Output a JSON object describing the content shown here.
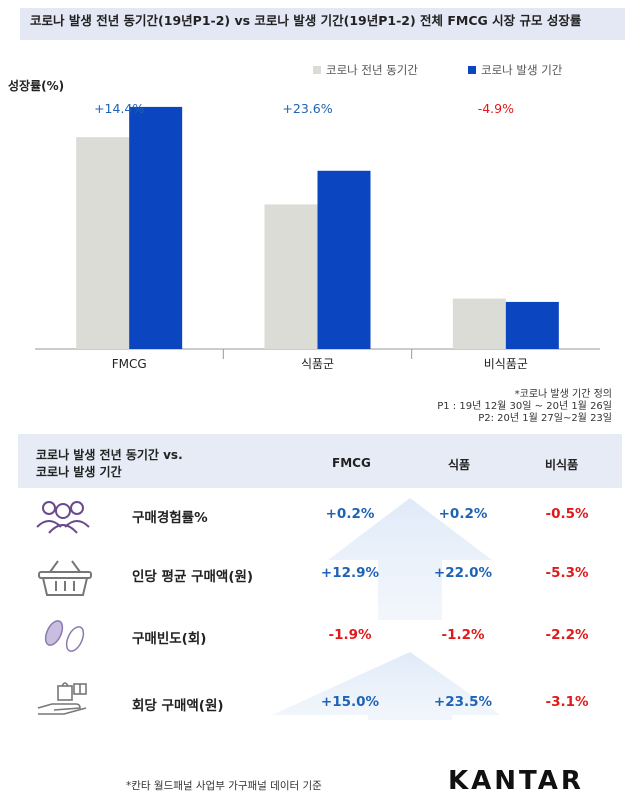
{
  "title": "코로나 발생 전년 동기간(19년P1-2) vs 코로나 발생 기간(19년P1-2) 전체 FMCG 시장 규모 성장률",
  "chart_data": {
    "type": "bar",
    "ylabel": "성장률(%)",
    "categories": [
      "FMCG",
      "식품군",
      "비식품군"
    ],
    "growth_labels": [
      "+14.4%",
      "+23.6%",
      "-4.9%"
    ],
    "series": [
      {
        "name": "코로나 전년 동기간",
        "color": "#dcdcd7",
        "values": [
          63,
          43,
          15
        ]
      },
      {
        "name": "코로나 발생 기간",
        "color": "#0b45c0",
        "values": [
          72,
          53,
          14
        ]
      }
    ],
    "ylim": [
      0,
      80
    ],
    "legend": "top-right",
    "grid": false
  },
  "note": {
    "line1": "*코로나 발생 기간 정의",
    "line2": "P1 : 19년 12월 30일 ~ 20년 1월 26일",
    "line3": "P2: 20년 1월 27일~2월 23일"
  },
  "table": {
    "header_line1": "코로나 발생 전년 동기간 vs.",
    "header_line2": "코로나 발생 기간",
    "columns": [
      "FMCG",
      "식품",
      "비식품"
    ],
    "rows": [
      {
        "label": "구매경험률%",
        "icon": "people-icon",
        "values": [
          "+0.2%",
          "+0.2%",
          "-0.5%"
        ]
      },
      {
        "label": "인당 평균 구매액(원)",
        "icon": "basket-icon",
        "values": [
          "+12.9%",
          "+22.0%",
          "-5.3%"
        ]
      },
      {
        "label": "구매빈도(회)",
        "icon": "footprints-icon",
        "values": [
          "-1.9%",
          "-1.2%",
          "-2.2%"
        ]
      },
      {
        "label": "회당 구매액(원)",
        "icon": "hand-bag-icon",
        "values": [
          "+15.0%",
          "+23.5%",
          "-3.1%"
        ]
      }
    ],
    "positive_color": "#1f63b5",
    "negative_color": "#e0191b"
  },
  "footnote": "*칸타 월드패널 사업부 가구패널 데이터 기준",
  "logo": "KANTAR"
}
